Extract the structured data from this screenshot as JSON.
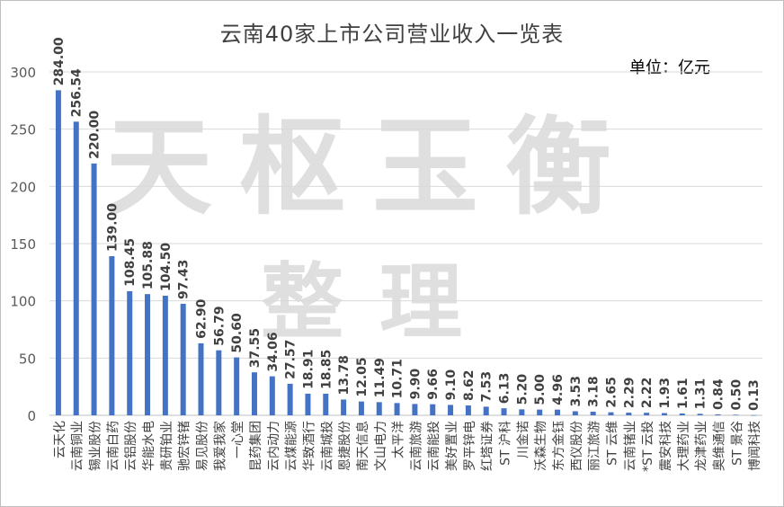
{
  "chart_data": {
    "type": "bar",
    "title": "云南40家上市公司营业收入一览表",
    "unit_label": "单位：亿元",
    "watermark": [
      "天枢玉衡",
      "整理"
    ],
    "ylim": [
      0,
      300
    ],
    "yticks": [
      0,
      50,
      100,
      150,
      200,
      250,
      300
    ],
    "grid": true,
    "bar_color": "#4472C4",
    "categories": [
      "云天化",
      "云南铜业",
      "锡业股份",
      "云南白药",
      "云铝股份",
      "华能水电",
      "贵研铂业",
      "驰宏锌锗",
      "易见股份",
      "我爱我家",
      "一心堂",
      "昆药集团",
      "云内动力",
      "云煤能源",
      "华致酒行",
      "云南城投",
      "恩捷股份",
      "南天信息",
      "文山电力",
      "太平洋",
      "云南旅游",
      "云南能投",
      "美好置业",
      "罗平锌电",
      "红塔证券",
      "ST 沪科",
      "川金诺",
      "沃森生物",
      "东方金钰",
      "西仪股份",
      "丽江旅游",
      "ST 云维",
      "云南锗业",
      "*ST 云投",
      "震安科技",
      "大理药业",
      "龙津药业",
      "奥维通信",
      "ST 景谷",
      "博闻科技"
    ],
    "values": [
      284.0,
      256.54,
      220.0,
      139.0,
      108.45,
      105.88,
      104.5,
      97.43,
      62.9,
      56.79,
      50.6,
      37.55,
      34.06,
      27.57,
      18.91,
      18.85,
      13.78,
      12.05,
      11.49,
      10.71,
      9.9,
      9.66,
      9.1,
      8.62,
      7.53,
      6.13,
      5.2,
      5.0,
      4.96,
      3.53,
      3.18,
      2.65,
      2.29,
      2.22,
      1.93,
      1.61,
      1.31,
      0.84,
      0.5,
      0.13
    ],
    "value_labels": [
      "284.00",
      "256.54",
      "220.00",
      "139.00",
      "108.45",
      "105.88",
      "104.50",
      "97.43",
      "62.90",
      "56.79",
      "50.60",
      "37.55",
      "34.06",
      "27.57",
      "18.91",
      "18.85",
      "13.78",
      "12.05",
      "11.49",
      "10.71",
      "9.90",
      "9.66",
      "9.10",
      "8.62",
      "7.53",
      "6.13",
      "5.20",
      "5.00",
      "4.96",
      "3.53",
      "3.18",
      "2.65",
      "2.29",
      "2.22",
      "1.93",
      "1.61",
      "1.31",
      "0.84",
      "0.50",
      "0.13"
    ]
  }
}
